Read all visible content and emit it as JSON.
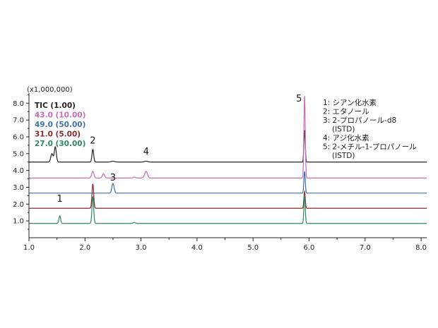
{
  "chart_data": {
    "type": "line",
    "title": "",
    "xlabel": "",
    "ylabel": "",
    "y_scale_label": "(x1,000,000)",
    "xlim": [
      1.0,
      8.1
    ],
    "ylim": [
      0,
      8.6
    ],
    "x_ticks": [
      "1.0",
      "2.0",
      "3.0",
      "4.0",
      "5.0",
      "6.0",
      "7.0",
      "8.0"
    ],
    "y_ticks": [
      "1.0",
      "2.0",
      "3.0",
      "4.0",
      "5.0",
      "6.0",
      "7.0",
      "8.0"
    ],
    "grid": false,
    "legend_position": "top-left",
    "series": [
      {
        "name": "TIC (1.00)",
        "color": "#222222",
        "baseline": 4.5,
        "peaks": [
          {
            "x": 1.41,
            "height": 0.5,
            "width": 0.02
          },
          {
            "x": 1.47,
            "height": 0.9,
            "width": 0.018
          },
          {
            "x": 2.14,
            "height": 0.75,
            "width": 0.015
          },
          {
            "x": 2.5,
            "height": 0.05,
            "width": 0.03
          },
          {
            "x": 3.09,
            "height": 0.05,
            "width": 0.03
          },
          {
            "x": 5.92,
            "height": 1.9,
            "width": 0.012
          }
        ]
      },
      {
        "name": "43.0 (10.00)",
        "color": "#c66bb4",
        "baseline": 3.55,
        "peaks": [
          {
            "x": 2.14,
            "height": 0.4,
            "width": 0.02
          },
          {
            "x": 2.33,
            "height": 0.25,
            "width": 0.02
          },
          {
            "x": 2.88,
            "height": 0.06,
            "width": 0.02
          },
          {
            "x": 3.09,
            "height": 0.4,
            "width": 0.025
          },
          {
            "x": 5.92,
            "height": 4.9,
            "width": 0.012
          }
        ]
      },
      {
        "name": "49.0 (50.00)",
        "color": "#3c6fa8",
        "baseline": 2.65,
        "peaks": [
          {
            "x": 2.5,
            "height": 0.58,
            "width": 0.02
          },
          {
            "x": 5.92,
            "height": 1.3,
            "width": 0.012
          }
        ]
      },
      {
        "name": "31.0 (5.00)",
        "color": "#8b2a2a",
        "baseline": 1.75,
        "peaks": [
          {
            "x": 2.14,
            "height": 1.45,
            "width": 0.015
          },
          {
            "x": 5.92,
            "height": 1.0,
            "width": 0.012
          }
        ]
      },
      {
        "name": "27.0 (30.00)",
        "color": "#2a8a5e",
        "baseline": 0.85,
        "peaks": [
          {
            "x": 1.55,
            "height": 0.45,
            "width": 0.015
          },
          {
            "x": 2.14,
            "height": 1.6,
            "width": 0.015
          },
          {
            "x": 2.88,
            "height": 0.06,
            "width": 0.02
          },
          {
            "x": 5.92,
            "height": 1.65,
            "width": 0.012
          }
        ]
      }
    ],
    "peak_labels": [
      {
        "text": "1",
        "x": 1.55,
        "y": 2.15
      },
      {
        "text": "2",
        "x": 2.14,
        "y": 5.6
      },
      {
        "text": "3",
        "x": 2.5,
        "y": 3.4
      },
      {
        "text": "4",
        "x": 3.09,
        "y": 4.95
      },
      {
        "text": "5",
        "x": 5.82,
        "y": 8.1
      }
    ],
    "annotations": [
      "1: シアン化水素",
      "2: エタノール",
      "3: 2-プロパノール-d8",
      "(ISTD)",
      "4: アジ化水素",
      "5: 2-メチル-1-プロパノール",
      "(ISTD)"
    ]
  }
}
